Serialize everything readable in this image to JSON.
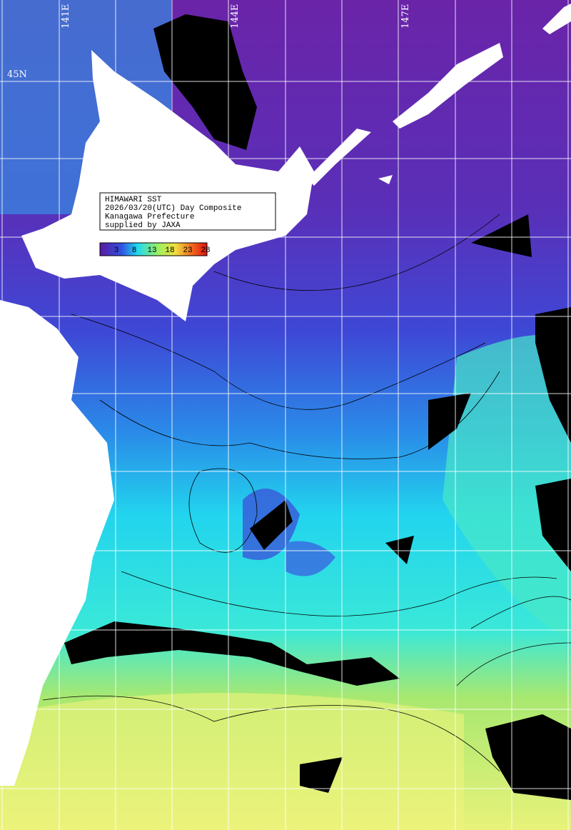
{
  "title_box": {
    "lines": [
      "HIMAWARI SST",
      "2026/03/20(UTC) Day Composite",
      "Kanagawa Prefecture",
      "supplied by JAXA"
    ]
  },
  "colorbar": {
    "labels": [
      3,
      8,
      13,
      18,
      23,
      28
    ]
  },
  "map": {
    "lon_labels": [
      "141E",
      "144E",
      "147E"
    ],
    "lat_labels": [
      "45N"
    ]
  }
}
